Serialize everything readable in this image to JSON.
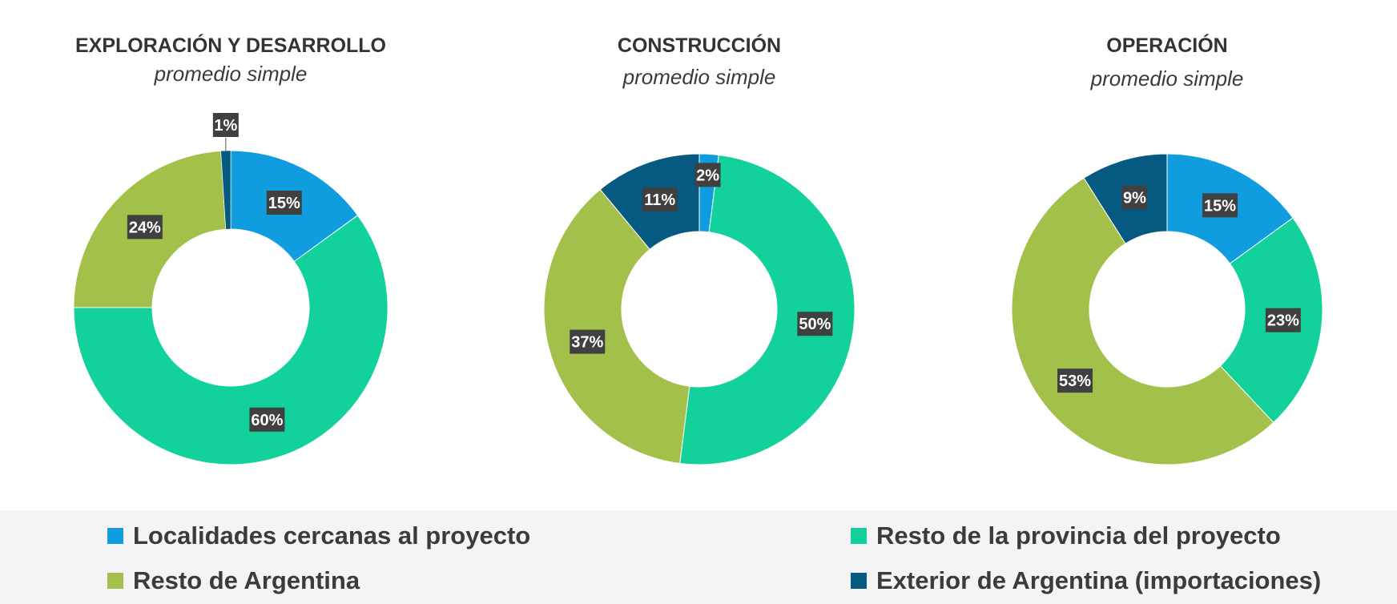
{
  "chart_data": [
    {
      "type": "donut",
      "title": "EXPLORACIÓN Y DESARROLLO",
      "subtitle": "promedio simple",
      "categories": [
        "Localidades cercanas al proyecto",
        "Resto de la provincia del proyecto",
        "Resto de Argentina",
        "Exterior de Argentina (importaciones)"
      ],
      "values": [
        15,
        60,
        24,
        1
      ],
      "labels": [
        "15%",
        "60%",
        "24%",
        "1%"
      ]
    },
    {
      "type": "donut",
      "title": "CONSTRUCCIÓN",
      "subtitle": "promedio simple",
      "categories": [
        "Localidades cercanas al proyecto",
        "Resto de la provincia del proyecto",
        "Resto de Argentina",
        "Exterior de Argentina (importaciones)"
      ],
      "values": [
        2,
        50,
        37,
        11
      ],
      "labels": [
        "2%",
        "50%",
        "37%",
        "11%"
      ]
    },
    {
      "type": "donut",
      "title": "OPERACIÓN",
      "subtitle": "promedio simple",
      "categories": [
        "Localidades cercanas al proyecto",
        "Resto de la provincia del proyecto",
        "Resto de Argentina",
        "Exterior de Argentina (importaciones)"
      ],
      "values": [
        15,
        23,
        53,
        9
      ],
      "labels": [
        "15%",
        "23%",
        "53%",
        "9%"
      ]
    }
  ],
  "legend": {
    "position": "bottom",
    "items": [
      {
        "label": "Localidades cercanas al proyecto",
        "color": "#0f9ddf"
      },
      {
        "label": "Resto de la provincia del proyecto",
        "color": "#12d19b"
      },
      {
        "label": "Resto de Argentina",
        "color": "#a3c14a"
      },
      {
        "label": "Exterior de Argentina (importaciones)",
        "color": "#065a82"
      }
    ]
  },
  "colors": {
    "series": [
      "#0f9ddf",
      "#12d19b",
      "#a3c14a",
      "#065a82"
    ],
    "data_label_background": "#404040",
    "data_label_text": "#ffffff"
  }
}
